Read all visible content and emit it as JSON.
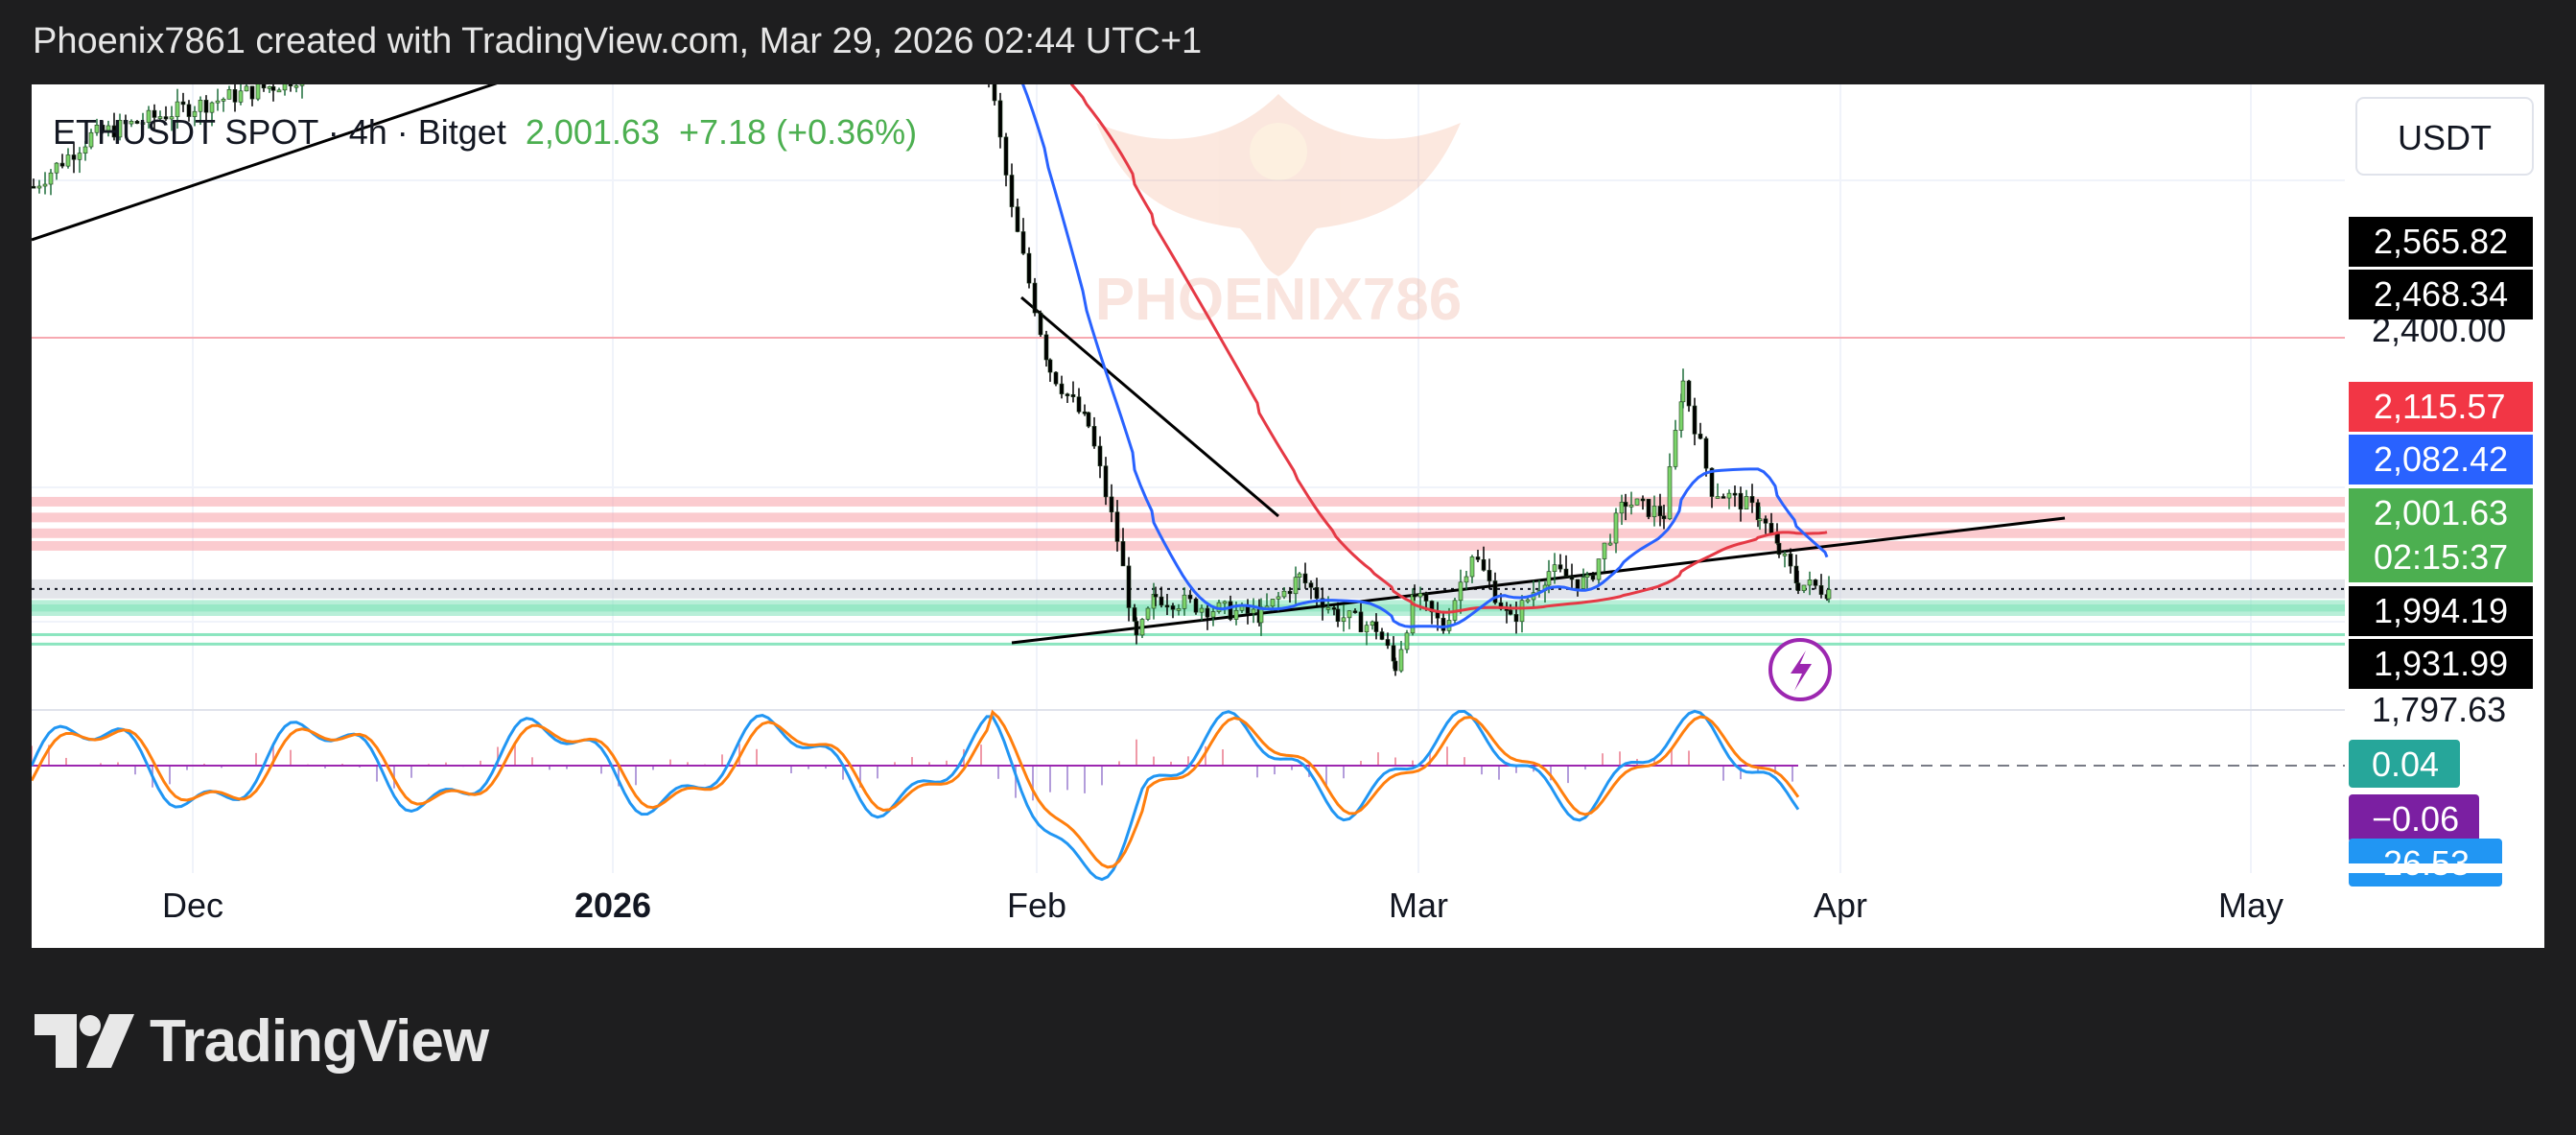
{
  "caption": "Phoenix7861 created with TradingView.com, Mar 29, 2026 02:44 UTC+1",
  "logo_text": "TradingView",
  "chart_data": {
    "type": "candlestick",
    "symbol": "ETHUSDT SPOT",
    "interval": "4h",
    "exchange": "Bitget",
    "last_price": "2,001.63",
    "change": "+7.18 (+0.36%)",
    "currency_button": "USDT",
    "watermark": "PHOENIX786",
    "x_ticks": [
      "Dec",
      "2026",
      "Feb",
      "Mar",
      "Apr",
      "May"
    ],
    "price_scale_labels": [
      "2,400.00",
      "1,797.63"
    ],
    "price_flags": [
      {
        "value": "2,565.82",
        "bg": "#000000",
        "fg": "#ffffff"
      },
      {
        "value": "2,468.34",
        "bg": "#000000",
        "fg": "#ffffff"
      },
      {
        "value": "2,115.57",
        "bg": "#f23645",
        "fg": "#ffffff"
      },
      {
        "value": "2,082.42",
        "bg": "#2962ff",
        "fg": "#ffffff"
      },
      {
        "value": "2,001.63",
        "bg": "#4caf50",
        "fg": "#ffffff"
      },
      {
        "value": "02:15:37",
        "bg": "#4caf50",
        "fg": "#ffffff"
      },
      {
        "value": "1,994.19",
        "bg": "#000000",
        "fg": "#ffffff"
      },
      {
        "value": "1,931.99",
        "bg": "#000000",
        "fg": "#ffffff"
      }
    ],
    "oscillator_flags": [
      {
        "value": "0.04",
        "bg": "#26a69a",
        "fg": "#ffffff"
      },
      {
        "value": "−0.06",
        "bg": "#7b1fa2",
        "fg": "#ffffff"
      },
      {
        "value": "-26.53",
        "bg": "#2196f3",
        "fg": "#ffffff"
      }
    ],
    "horizontal_levels": {
      "resistance": [
        2400,
        2140,
        2115,
        2090,
        2070
      ],
      "support": [
        1975,
        1968,
        1930,
        1915
      ],
      "current": 2001.63
    },
    "colors": {
      "up": "#26a69a",
      "down": "#000000",
      "ma_fast": "#2962ff",
      "ma_slow": "#e53945",
      "osc_fast": "#2196f3",
      "osc_slow": "#ff7f0e"
    },
    "ylim": [
      1797.63,
      2700
    ]
  }
}
